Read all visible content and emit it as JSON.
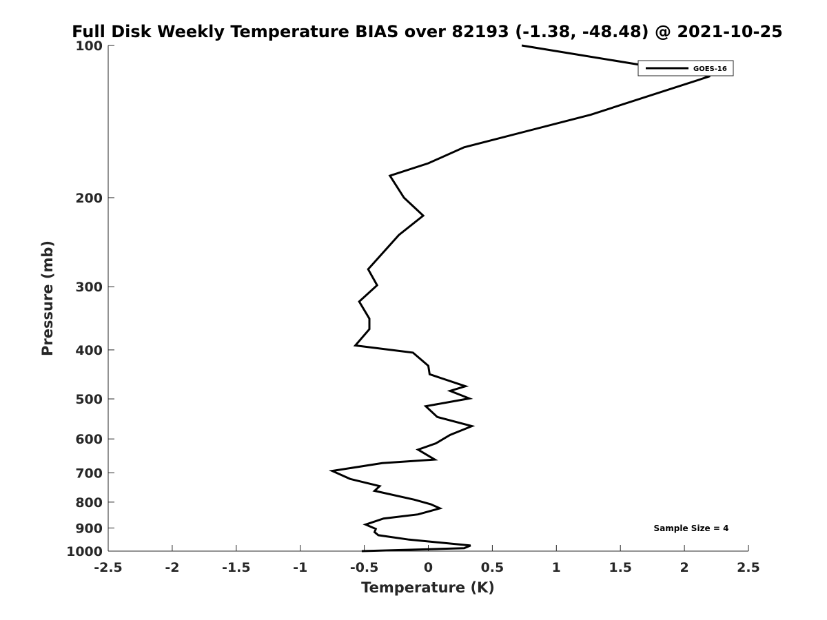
{
  "chart_data": {
    "type": "line",
    "title": "Full Disk Weekly Temperature BIAS over 82193 (-1.38, -48.48) @ 2021-10-25",
    "xlabel": "Temperature (K)",
    "ylabel": "Pressure (mb)",
    "xlim": [
      -2.5,
      2.5
    ],
    "ylim": [
      100,
      1000
    ],
    "y_scale": "log",
    "y_reversed": true,
    "x_ticks": [
      "-2.5",
      "-2",
      "-1.5",
      "-1",
      "-0.5",
      "0",
      "0.5",
      "1",
      "1.5",
      "2",
      "2.5"
    ],
    "y_ticks": [
      "100",
      "200",
      "300",
      "400",
      "500",
      "600",
      "700",
      "800",
      "900",
      "1000"
    ],
    "grid": false,
    "legend": {
      "position": "top-right",
      "entries": [
        "GOES-16"
      ]
    },
    "annotation": "Sample Size = 4",
    "colors": {
      "line": "#000000",
      "axis": "#262626"
    },
    "series": [
      {
        "name": "GOES-16",
        "x": [
          0.73,
          1.73,
          2.2,
          1.27,
          0.28,
          0.0,
          -0.3,
          -0.19,
          -0.04,
          -0.23,
          -0.47,
          -0.4,
          -0.54,
          -0.46,
          -0.46,
          -0.57,
          -0.12,
          0.0,
          0.01,
          0.29,
          0.17,
          0.32,
          -0.02,
          0.07,
          0.34,
          0.17,
          0.06,
          -0.08,
          0.05,
          -0.36,
          -0.75,
          -0.61,
          -0.38,
          -0.42,
          -0.11,
          0.02,
          0.09,
          -0.08,
          -0.35,
          -0.49,
          -0.41,
          -0.42,
          -0.39,
          -0.15,
          0.33,
          0.28,
          -0.52
        ],
        "y": [
          100,
          110,
          115,
          137,
          159,
          171,
          181,
          200,
          217,
          237,
          277,
          298,
          321,
          347,
          364,
          392,
          405,
          430,
          447,
          472,
          482,
          499,
          517,
          543,
          566,
          589,
          612,
          630,
          659,
          670,
          694,
          720,
          744,
          760,
          791,
          808,
          823,
          846,
          862,
          886,
          904,
          917,
          930,
          949,
          975,
          987,
          1000
        ]
      }
    ]
  }
}
